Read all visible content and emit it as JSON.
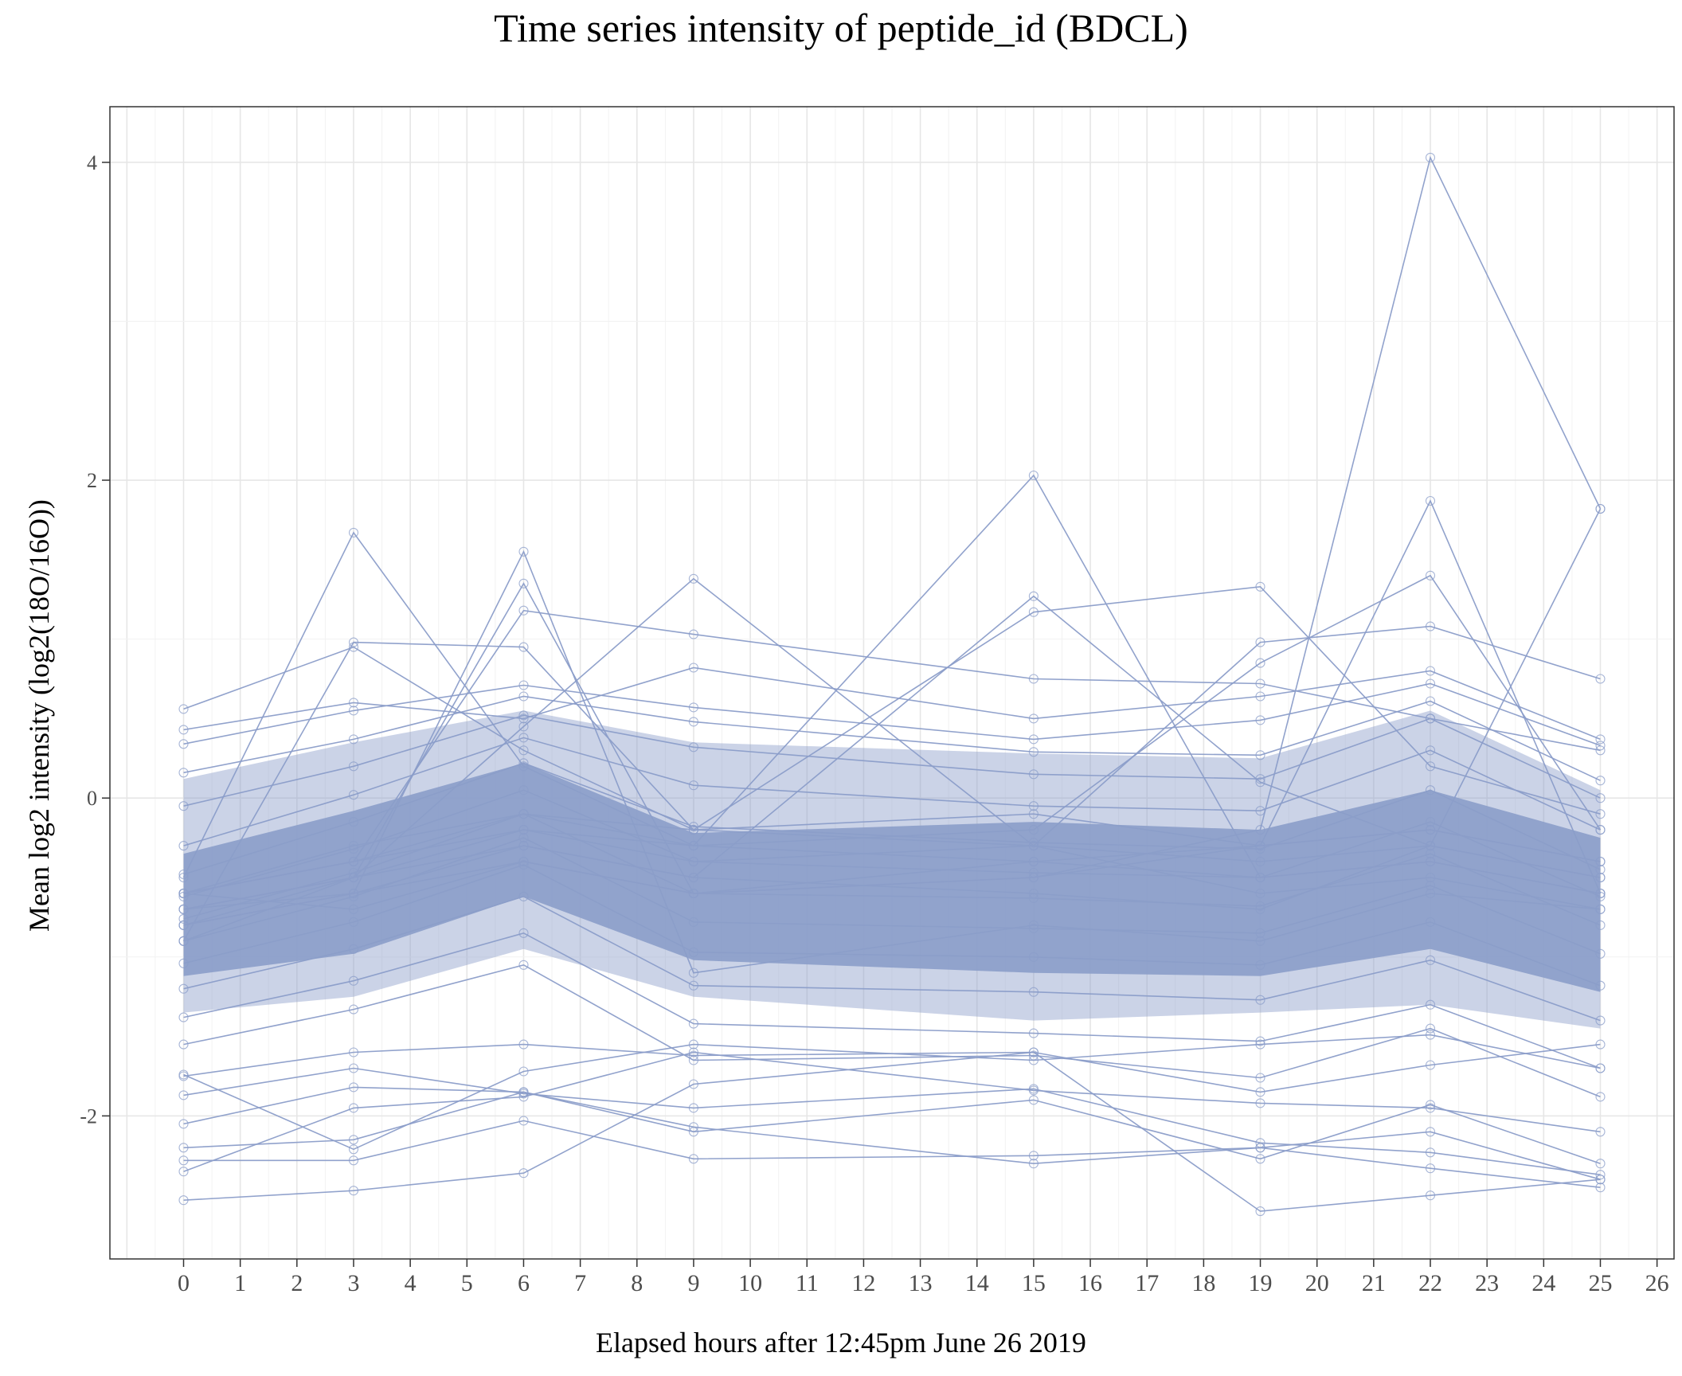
{
  "chart_data": {
    "type": "line",
    "title": "Time series intensity of peptide_id (BDCL)",
    "xlabel": "Elapsed hours after 12:45pm June 26 2019",
    "ylabel": "Mean log2 intensity (log2(18O/16O))",
    "x_ticks": [
      "0",
      "1",
      "2",
      "3",
      "4",
      "5",
      "6",
      "7",
      "8",
      "9",
      "10",
      "11",
      "12",
      "13",
      "14",
      "15",
      "16",
      "17",
      "18",
      "19",
      "20",
      "21",
      "22",
      "23",
      "24",
      "25",
      "26"
    ],
    "y_ticks": [
      "-2",
      "0",
      "2",
      "4"
    ],
    "xlim": [
      -1.3,
      26.3
    ],
    "ylim": [
      -2.9,
      4.35
    ],
    "x": [
      0,
      3,
      6,
      9,
      15,
      19,
      22,
      25
    ],
    "line_color": "#8b9dc9",
    "grid": true,
    "legend": "none",
    "series": [
      {
        "values": [
          -0.8,
          -0.6,
          -0.3,
          -0.5,
          -0.6,
          -0.7,
          -0.3,
          1.82
        ]
      },
      {
        "values": [
          -0.6,
          -0.7,
          -0.4,
          -0.6,
          -0.5,
          -0.2,
          4.03,
          1.82
        ]
      },
      {
        "values": [
          -0.5,
          1.67,
          0.2,
          -0.3,
          -0.4,
          -0.5,
          -0.4,
          -0.6
        ]
      },
      {
        "values": [
          -0.9,
          0.98,
          0.95,
          -0.2,
          -0.3,
          -0.4,
          -0.3,
          -0.5
        ]
      },
      {
        "values": [
          -0.7,
          -0.6,
          1.55,
          -1.1,
          -0.8,
          -0.9,
          -0.6,
          -0.7
        ]
      },
      {
        "values": [
          -0.8,
          -0.5,
          1.35,
          -0.6,
          -0.4,
          -0.3,
          -0.2,
          -0.4
        ]
      },
      {
        "values": [
          -0.6,
          -0.4,
          1.18,
          1.03,
          0.75,
          0.72,
          0.5,
          0.3
        ]
      },
      {
        "values": [
          0.56,
          0.95,
          0.3,
          -0.2,
          -0.1,
          -0.3,
          -0.2,
          -0.4
        ]
      },
      {
        "values": [
          -0.9,
          -0.5,
          0.45,
          1.38,
          -0.3,
          -0.6,
          -0.5,
          -0.7
        ]
      },
      {
        "values": [
          -0.6,
          -0.4,
          -0.2,
          -0.3,
          2.03,
          -0.5,
          -0.4,
          -0.6
        ]
      },
      {
        "values": [
          -0.7,
          -0.5,
          -0.3,
          -0.5,
          1.27,
          0.1,
          -0.3,
          -0.5
        ]
      },
      {
        "values": [
          -0.6,
          -0.3,
          -0.1,
          -0.2,
          1.17,
          1.33,
          0.2,
          -0.1
        ]
      },
      {
        "values": [
          -0.8,
          -0.6,
          -0.4,
          -0.6,
          -0.5,
          -0.3,
          1.87,
          -0.6
        ]
      },
      {
        "values": [
          -0.7,
          -0.5,
          -0.2,
          -0.4,
          -0.3,
          0.98,
          1.08,
          0.75
        ]
      },
      {
        "values": [
          -0.6,
          -0.4,
          -0.1,
          -0.3,
          -0.2,
          0.85,
          1.4,
          -0.2
        ]
      },
      {
        "values": [
          0.43,
          0.6,
          0.5,
          0.82,
          0.5,
          0.64,
          0.8,
          0.37
        ]
      },
      {
        "values": [
          0.34,
          0.55,
          0.71,
          0.57,
          0.37,
          0.49,
          0.72,
          0.33
        ]
      },
      {
        "values": [
          0.16,
          0.37,
          0.64,
          0.48,
          0.29,
          0.27,
          0.61,
          0.11
        ]
      },
      {
        "values": [
          -0.05,
          0.2,
          0.52,
          0.32,
          0.15,
          0.12,
          0.5,
          0.0
        ]
      },
      {
        "values": [
          -0.3,
          0.02,
          0.38,
          0.08,
          -0.05,
          -0.08,
          0.3,
          -0.2
        ]
      },
      {
        "values": [
          -0.48,
          -0.15,
          0.22,
          -0.18,
          -0.28,
          -0.32,
          0.05,
          -0.45
        ]
      },
      {
        "values": [
          -0.62,
          -0.32,
          0.05,
          -0.4,
          -0.47,
          -0.5,
          -0.15,
          -0.62
        ]
      },
      {
        "values": [
          -0.76,
          -0.47,
          -0.1,
          -0.6,
          -0.63,
          -0.68,
          -0.35,
          -0.8
        ]
      },
      {
        "values": [
          -0.9,
          -0.62,
          -0.25,
          -0.78,
          -0.82,
          -0.85,
          -0.55,
          -0.98
        ]
      },
      {
        "values": [
          -1.04,
          -0.78,
          -0.42,
          -0.97,
          -1.0,
          -1.05,
          -0.78,
          -1.18
        ]
      },
      {
        "values": [
          -1.2,
          -0.95,
          -0.62,
          -1.18,
          -1.22,
          -1.27,
          -1.02,
          -1.4
        ]
      },
      {
        "values": [
          -1.38,
          -1.15,
          -0.85,
          -1.42,
          -1.48,
          -1.53,
          -1.3,
          -1.7
        ]
      },
      {
        "values": [
          -1.55,
          -1.33,
          -1.05,
          -1.65,
          -1.62,
          -1.76,
          -1.45,
          -1.88
        ]
      },
      {
        "values": [
          -1.75,
          -1.6,
          -1.55,
          -1.62,
          -1.6,
          -1.85,
          -1.68,
          -1.55
        ]
      },
      {
        "values": [
          -2.05,
          -1.82,
          -1.85,
          -2.1,
          -1.9,
          -2.27,
          -1.93,
          -2.3
        ]
      },
      {
        "values": [
          -2.2,
          -2.15,
          -1.85,
          -2.07,
          -2.3,
          -2.2,
          -2.1,
          -2.4
        ]
      },
      {
        "values": [
          -2.28,
          -2.28,
          -2.03,
          -2.27,
          -2.25,
          -2.2,
          -2.33,
          -2.45
        ]
      },
      {
        "values": [
          -1.87,
          -1.7,
          -1.86,
          -1.95,
          -1.83,
          -2.17,
          -2.23,
          -2.37
        ]
      },
      {
        "values": [
          -2.53,
          -2.47,
          -2.36,
          -1.8,
          -1.6,
          -2.6,
          -2.5,
          -2.4
        ]
      },
      {
        "values": [
          -2.35,
          -1.95,
          -1.88,
          -1.6,
          -1.84,
          -1.92,
          -1.95,
          -2.1
        ]
      },
      {
        "values": [
          -1.74,
          -2.21,
          -1.72,
          -1.55,
          -1.65,
          -1.55,
          -1.49,
          -1.7
        ]
      }
    ]
  }
}
